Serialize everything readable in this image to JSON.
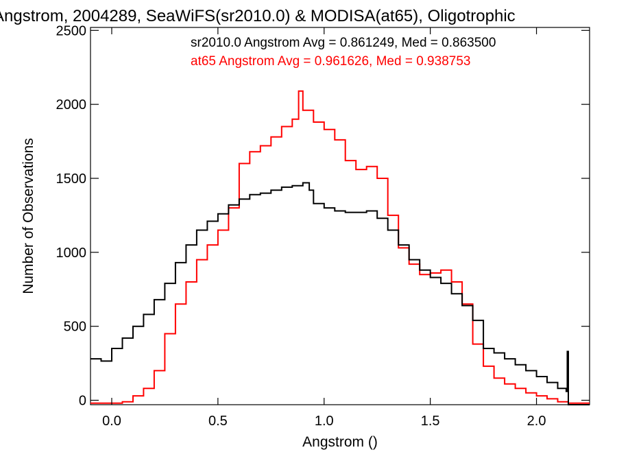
{
  "chart_data": {
    "type": "line",
    "title": "Angstrom, 2004289, SeaWiFS(sr2010.0) & MODISA(at65), Oligotrophic",
    "xlabel": "Angstrom ()",
    "ylabel": "Number of Observations",
    "xlim": [
      -0.1,
      2.25
    ],
    "ylim": [
      -30,
      2520
    ],
    "x_ticks": [
      0.0,
      0.5,
      1.0,
      1.5,
      2.0
    ],
    "x_tick_labels": [
      "0.0",
      "0.5",
      "1.0",
      "1.5",
      "2.0"
    ],
    "y_ticks": [
      0,
      500,
      1000,
      1500,
      2000,
      2500
    ],
    "y_tick_labels": [
      "0",
      "500",
      "1000",
      "1500",
      "2000",
      "2500"
    ],
    "grid": false,
    "legend": "none",
    "series": [
      {
        "key": "sr2010",
        "color": "#000000",
        "stat_text": "sr2010.0 Angstrom Avg = 0.861249, Med = 0.863500",
        "points": [
          [
            -0.1,
            280
          ],
          [
            -0.05,
            265
          ],
          [
            0.0,
            350
          ],
          [
            0.05,
            420
          ],
          [
            0.1,
            500
          ],
          [
            0.15,
            580
          ],
          [
            0.2,
            680
          ],
          [
            0.25,
            790
          ],
          [
            0.3,
            930
          ],
          [
            0.35,
            1050
          ],
          [
            0.4,
            1150
          ],
          [
            0.45,
            1210
          ],
          [
            0.5,
            1260
          ],
          [
            0.55,
            1320
          ],
          [
            0.6,
            1360
          ],
          [
            0.65,
            1390
          ],
          [
            0.7,
            1400
          ],
          [
            0.75,
            1420
          ],
          [
            0.8,
            1440
          ],
          [
            0.85,
            1450
          ],
          [
            0.9,
            1470
          ],
          [
            0.93,
            1420
          ],
          [
            0.95,
            1330
          ],
          [
            1.0,
            1300
          ],
          [
            1.05,
            1280
          ],
          [
            1.1,
            1270
          ],
          [
            1.15,
            1270
          ],
          [
            1.2,
            1280
          ],
          [
            1.25,
            1230
          ],
          [
            1.3,
            1150
          ],
          [
            1.35,
            1050
          ],
          [
            1.4,
            950
          ],
          [
            1.45,
            880
          ],
          [
            1.5,
            830
          ],
          [
            1.55,
            790
          ],
          [
            1.6,
            720
          ],
          [
            1.65,
            640
          ],
          [
            1.7,
            540
          ],
          [
            1.75,
            350
          ],
          [
            1.8,
            320
          ],
          [
            1.85,
            280
          ],
          [
            1.9,
            240
          ],
          [
            1.95,
            200
          ],
          [
            2.0,
            160
          ],
          [
            2.05,
            120
          ],
          [
            2.1,
            80
          ],
          [
            2.14,
            60
          ],
          [
            2.145,
            330
          ],
          [
            2.15,
            -30
          ],
          [
            2.25,
            -30
          ]
        ]
      },
      {
        "key": "at65",
        "color": "#ff0000",
        "stat_text": "at65 Angstrom Avg = 0.961626, Med = 0.938753",
        "points": [
          [
            -0.1,
            -20
          ],
          [
            -0.05,
            -20
          ],
          [
            0.0,
            -20
          ],
          [
            0.05,
            -10
          ],
          [
            0.1,
            30
          ],
          [
            0.15,
            80
          ],
          [
            0.2,
            200
          ],
          [
            0.25,
            450
          ],
          [
            0.3,
            650
          ],
          [
            0.35,
            800
          ],
          [
            0.4,
            950
          ],
          [
            0.45,
            1050
          ],
          [
            0.5,
            1150
          ],
          [
            0.55,
            1300
          ],
          [
            0.6,
            1600
          ],
          [
            0.65,
            1680
          ],
          [
            0.7,
            1720
          ],
          [
            0.75,
            1780
          ],
          [
            0.8,
            1850
          ],
          [
            0.85,
            1900
          ],
          [
            0.88,
            2090
          ],
          [
            0.9,
            1960
          ],
          [
            0.95,
            1880
          ],
          [
            1.0,
            1830
          ],
          [
            1.05,
            1760
          ],
          [
            1.1,
            1620
          ],
          [
            1.15,
            1560
          ],
          [
            1.2,
            1580
          ],
          [
            1.25,
            1500
          ],
          [
            1.3,
            1250
          ],
          [
            1.35,
            1030
          ],
          [
            1.4,
            920
          ],
          [
            1.45,
            850
          ],
          [
            1.5,
            860
          ],
          [
            1.55,
            880
          ],
          [
            1.6,
            800
          ],
          [
            1.65,
            650
          ],
          [
            1.7,
            380
          ],
          [
            1.75,
            230
          ],
          [
            1.8,
            150
          ],
          [
            1.85,
            110
          ],
          [
            1.9,
            80
          ],
          [
            1.95,
            50
          ],
          [
            2.0,
            30
          ],
          [
            2.05,
            10
          ],
          [
            2.1,
            -10
          ],
          [
            2.15,
            -20
          ],
          [
            2.25,
            -20
          ]
        ]
      }
    ]
  }
}
